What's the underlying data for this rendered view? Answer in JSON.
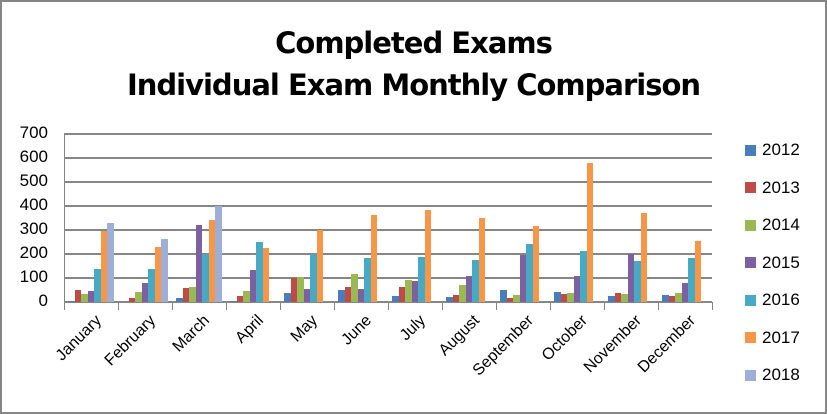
{
  "chart_data": {
    "type": "bar",
    "title": "Completed Exams",
    "subtitle": "Individual Exam Monthly Comparison",
    "xlabel": "",
    "ylabel": "",
    "ylim": [
      0,
      700
    ],
    "yticks": [
      0,
      100,
      200,
      300,
      400,
      500,
      600,
      700
    ],
    "grid": true,
    "legend_position": "right",
    "categories": [
      "January",
      "February",
      "March",
      "April",
      "May",
      "June",
      "July",
      "August",
      "September",
      "October",
      "November",
      "December"
    ],
    "series": [
      {
        "name": "2012",
        "color": "#4a7ebb",
        "values": [
          5,
          0,
          18,
          5,
          36,
          51,
          25,
          21,
          50,
          42,
          26,
          30
        ]
      },
      {
        "name": "2013",
        "color": "#be4b48",
        "values": [
          50,
          17,
          57,
          27,
          98,
          62,
          62,
          29,
          17,
          33,
          37,
          26
        ]
      },
      {
        "name": "2014",
        "color": "#98b954",
        "values": [
          33,
          42,
          61,
          44,
          104,
          117,
          92,
          71,
          29,
          37,
          33,
          36
        ]
      },
      {
        "name": "2015",
        "color": "#7d60a0",
        "values": [
          46,
          80,
          322,
          135,
          54,
          54,
          88,
          108,
          197,
          108,
          200,
          80
        ]
      },
      {
        "name": "2016",
        "color": "#46aac5",
        "values": [
          138,
          138,
          200,
          248,
          200,
          183,
          188,
          175,
          242,
          213,
          172,
          185
        ]
      },
      {
        "name": "2017",
        "color": "#f79646",
        "values": [
          297,
          230,
          340,
          227,
          300,
          362,
          383,
          350,
          317,
          580,
          372,
          255
        ]
      },
      {
        "name": "2018",
        "color": "#9dafd7",
        "values": [
          330,
          263,
          400,
          null,
          null,
          null,
          null,
          null,
          null,
          null,
          null,
          null
        ]
      }
    ]
  }
}
